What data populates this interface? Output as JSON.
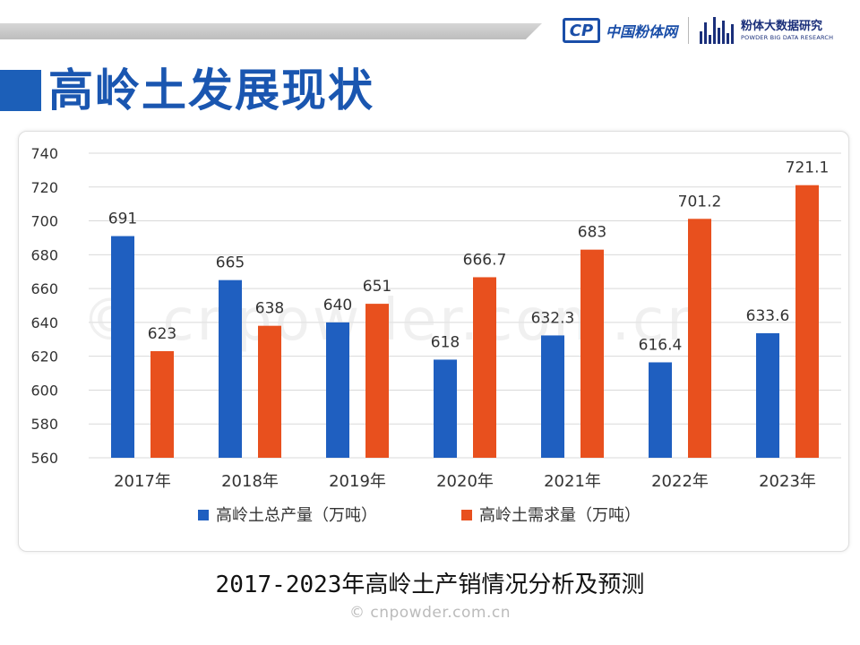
{
  "header": {
    "logo1_text": "中国粉体网",
    "logo2_cn": "粉体大数据研究",
    "logo2_en": "POWDER BIG DATA RESEARCH"
  },
  "page_title": "高岭土发展现状",
  "chart_watermark": "© cnpowder.com.cn",
  "caption": "2017-2023年高岭土产销情况分析及预测",
  "footer_watermark": "© cnpowder.com.cn",
  "colors": {
    "production": "#1f5fc0",
    "demand": "#e8501e",
    "accent": "#1c5fb8"
  },
  "chart_data": {
    "type": "bar",
    "categories": [
      "2017年",
      "2018年",
      "2019年",
      "2020年",
      "2021年",
      "2022年",
      "2023年"
    ],
    "series": [
      {
        "name": "高岭土总产量（万吨）",
        "values": [
          691,
          665,
          640,
          618,
          632.3,
          616.4,
          633.6
        ],
        "labels": [
          "691",
          "665",
          "640",
          "618",
          "632.3",
          "616.4",
          "633.6"
        ]
      },
      {
        "name": "高岭土需求量（万吨）",
        "values": [
          623,
          638,
          651,
          666.7,
          683,
          701.2,
          721.1
        ],
        "labels": [
          "623",
          "638",
          "651",
          "666.7",
          "683",
          "701.2",
          "721.1"
        ]
      }
    ],
    "ylim": [
      560,
      740
    ],
    "yticks": [
      560,
      580,
      600,
      620,
      640,
      660,
      680,
      700,
      720,
      740
    ],
    "grid": true,
    "legend_position": "bottom"
  }
}
